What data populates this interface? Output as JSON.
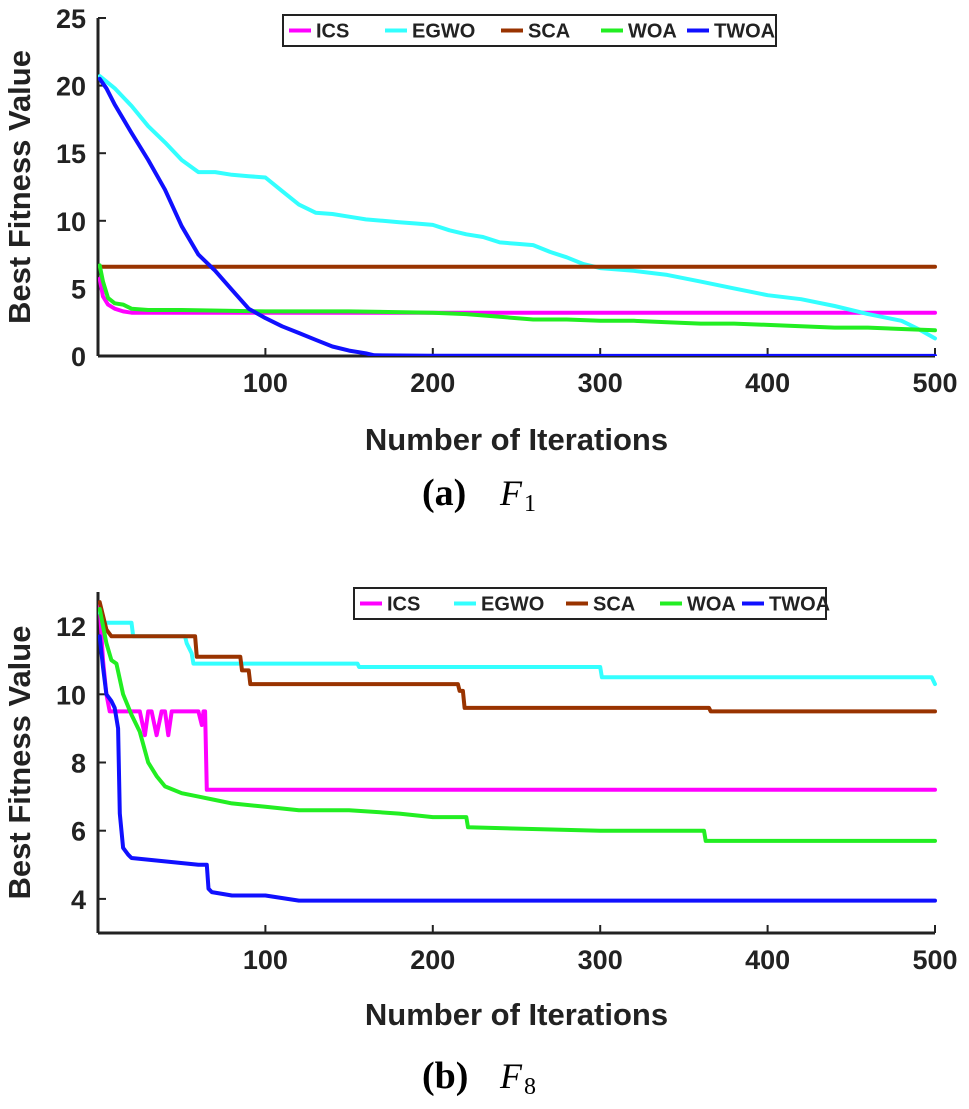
{
  "chart_data": [
    {
      "type": "line",
      "panel": "(a)",
      "caption": {
        "letter": "(a)",
        "function": "F",
        "subscript": "1"
      },
      "xlabel": "Number of Iterations",
      "ylabel": "Best Fitness Value",
      "xlim": [
        0,
        500
      ],
      "ylim": [
        0,
        25
      ],
      "xticks": [
        100,
        200,
        300,
        400,
        500
      ],
      "yticks": [
        0,
        5,
        10,
        15,
        20,
        25
      ],
      "grid": false,
      "legend": {
        "placement": "top",
        "orientation": "horizontal"
      },
      "series": [
        {
          "name": "ICS",
          "color": "#ff00ff",
          "x": [
            1,
            3,
            6,
            10,
            15,
            20,
            30,
            50,
            100,
            200,
            300,
            400,
            500
          ],
          "y": [
            5.7,
            4.4,
            3.8,
            3.5,
            3.3,
            3.2,
            3.2,
            3.2,
            3.2,
            3.2,
            3.2,
            3.2,
            3.2
          ]
        },
        {
          "name": "EGWO",
          "color": "#33ffff",
          "x": [
            1,
            10,
            20,
            30,
            40,
            50,
            60,
            70,
            80,
            90,
            100,
            110,
            120,
            130,
            140,
            150,
            160,
            170,
            180,
            190,
            200,
            210,
            220,
            230,
            240,
            250,
            260,
            270,
            280,
            290,
            300,
            320,
            340,
            360,
            380,
            400,
            420,
            440,
            460,
            480,
            490,
            500
          ],
          "y": [
            20.7,
            19.8,
            18.5,
            17.0,
            15.8,
            14.5,
            13.6,
            13.6,
            13.4,
            13.3,
            13.2,
            12.2,
            11.2,
            10.6,
            10.5,
            10.3,
            10.1,
            10.0,
            9.9,
            9.8,
            9.7,
            9.3,
            9.0,
            8.8,
            8.4,
            8.3,
            8.2,
            7.7,
            7.3,
            6.8,
            6.5,
            6.3,
            6.0,
            5.5,
            5.0,
            4.5,
            4.2,
            3.7,
            3.1,
            2.6,
            2.0,
            1.3
          ]
        },
        {
          "name": "SCA",
          "color": "#993300",
          "x": [
            1,
            500
          ],
          "y": [
            6.6,
            6.6
          ]
        },
        {
          "name": "WOA",
          "color": "#22ee22",
          "x": [
            1,
            3,
            6,
            10,
            15,
            20,
            30,
            50,
            100,
            150,
            200,
            220,
            240,
            260,
            280,
            300,
            320,
            340,
            360,
            380,
            400,
            420,
            440,
            460,
            480,
            500
          ],
          "y": [
            6.7,
            5.5,
            4.3,
            3.9,
            3.8,
            3.5,
            3.4,
            3.4,
            3.3,
            3.3,
            3.2,
            3.1,
            2.9,
            2.7,
            2.7,
            2.6,
            2.6,
            2.5,
            2.4,
            2.4,
            2.3,
            2.2,
            2.1,
            2.1,
            2.0,
            1.9
          ]
        },
        {
          "name": "TWOA",
          "color": "#1010ff",
          "x": [
            1,
            5,
            10,
            20,
            30,
            40,
            50,
            60,
            70,
            80,
            90,
            100,
            110,
            120,
            130,
            140,
            150,
            160,
            165,
            200,
            300,
            400,
            500
          ],
          "y": [
            20.5,
            19.8,
            18.6,
            16.5,
            14.5,
            12.3,
            9.6,
            7.5,
            6.3,
            4.9,
            3.5,
            2.8,
            2.2,
            1.7,
            1.2,
            0.7,
            0.4,
            0.2,
            0.05,
            0.02,
            0.01,
            0.01,
            0.01
          ]
        }
      ]
    },
    {
      "type": "line",
      "panel": "(b)",
      "caption": {
        "letter": "(b)",
        "function": "F",
        "subscript": "8"
      },
      "xlabel": "Number of Iterations",
      "ylabel": "Best Fitness Value",
      "xlim": [
        0,
        500
      ],
      "ylim": [
        3,
        13
      ],
      "xticks": [
        100,
        200,
        300,
        400,
        500
      ],
      "yticks": [
        4,
        6,
        8,
        10,
        12
      ],
      "grid": false,
      "legend": {
        "placement": "top-right",
        "orientation": "horizontal"
      },
      "series": [
        {
          "name": "ICS",
          "color": "#ff00ff",
          "x": [
            1,
            3,
            5,
            7,
            10,
            20,
            25,
            28,
            30,
            32,
            35,
            38,
            40,
            42,
            44,
            46,
            50,
            55,
            60,
            62,
            63,
            64,
            65,
            66,
            70,
            100,
            200,
            300,
            400,
            500
          ],
          "y": [
            12.6,
            11.0,
            10.0,
            9.5,
            9.5,
            9.5,
            9.5,
            8.8,
            9.5,
            9.5,
            8.8,
            9.5,
            9.5,
            8.8,
            9.5,
            9.5,
            9.5,
            9.5,
            9.5,
            9.1,
            9.5,
            9.5,
            7.2,
            7.2,
            7.2,
            7.2,
            7.2,
            7.2,
            7.2,
            7.2
          ]
        },
        {
          "name": "EGWO",
          "color": "#33ffff",
          "x": [
            1,
            4,
            20,
            21,
            52,
            53,
            56,
            57,
            100,
            101,
            155,
            156,
            300,
            301,
            498,
            500
          ],
          "y": [
            12.4,
            12.1,
            12.1,
            11.7,
            11.7,
            11.5,
            11.2,
            10.9,
            10.9,
            10.9,
            10.9,
            10.8,
            10.8,
            10.5,
            10.5,
            10.3
          ]
        },
        {
          "name": "SCA",
          "color": "#993300",
          "x": [
            1,
            5,
            8,
            58,
            59,
            85,
            86,
            90,
            91,
            215,
            216,
            218,
            219,
            365,
            366,
            500
          ],
          "y": [
            12.7,
            11.9,
            11.7,
            11.7,
            11.1,
            11.1,
            10.7,
            10.7,
            10.3,
            10.3,
            10.1,
            10.1,
            9.6,
            9.6,
            9.5,
            9.5
          ]
        },
        {
          "name": "WOA",
          "color": "#22ee22",
          "x": [
            1,
            5,
            8,
            11,
            15,
            20,
            25,
            30,
            35,
            40,
            50,
            60,
            70,
            80,
            100,
            120,
            150,
            180,
            200,
            220,
            221,
            300,
            362,
            363,
            420,
            500
          ],
          "y": [
            12.5,
            11.5,
            11.0,
            10.9,
            10.0,
            9.4,
            8.9,
            8.0,
            7.6,
            7.3,
            7.1,
            7.0,
            6.9,
            6.8,
            6.7,
            6.6,
            6.6,
            6.5,
            6.4,
            6.4,
            6.1,
            6.0,
            6.0,
            5.7,
            5.7,
            5.7
          ]
        },
        {
          "name": "TWOA",
          "color": "#1010ff",
          "x": [
            1,
            3,
            5,
            8,
            10,
            12,
            13,
            15,
            18,
            20,
            40,
            60,
            65,
            66,
            68,
            80,
            100,
            120,
            125,
            200,
            300,
            400,
            500
          ],
          "y": [
            11.7,
            10.8,
            10.0,
            9.8,
            9.6,
            9.0,
            6.5,
            5.5,
            5.3,
            5.2,
            5.1,
            5.0,
            5.0,
            4.3,
            4.2,
            4.1,
            4.1,
            3.95,
            3.95,
            3.95,
            3.95,
            3.95,
            3.95
          ]
        }
      ]
    }
  ]
}
